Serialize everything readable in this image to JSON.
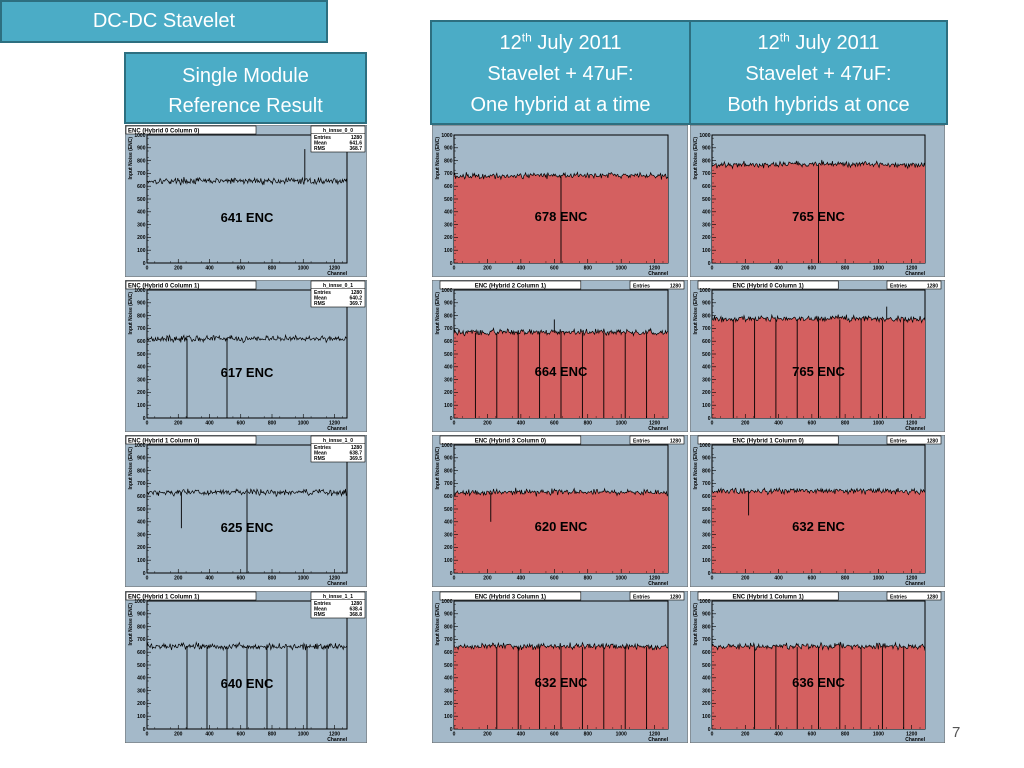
{
  "page": {
    "title": "DC-DC Stavelet",
    "page_number": "7"
  },
  "columns": [
    {
      "line1": "Single Module",
      "line2": "Reference Result"
    },
    {
      "date_day": "12",
      "date_suffix": "th",
      "date_rest": " July 2011",
      "line2": "Stavelet + 47uF:",
      "line3": "One hybrid at a time"
    },
    {
      "date_day": "12",
      "date_suffix": "th",
      "date_rest": " July 2011",
      "line2": "Stavelet + 47uF:",
      "line3": "Both hybrids at once"
    }
  ],
  "chart_data": [
    {
      "type": "line",
      "column": 0,
      "row": 0,
      "title": "ENC (Hybrid 0 Column 0)",
      "stats_name": "h_innse_0_0",
      "entries": "1280",
      "mean": "641.6",
      "rms": "368.7",
      "annotation": "641 ENC",
      "ylabel": "Input Noise (ENC)",
      "xlabel": "Channel",
      "xlim": [
        0,
        1280
      ],
      "ylim": [
        0,
        1000
      ],
      "x_ticks": [
        0,
        200,
        400,
        600,
        800,
        1000,
        1200
      ],
      "y_ticks": [
        0,
        100,
        200,
        300,
        400,
        500,
        600,
        700,
        800,
        900,
        1000
      ],
      "fill": false,
      "noise_level": 641,
      "noise_spread": 12,
      "spikes": [
        {
          "x": 1010,
          "y": 890
        }
      ],
      "dips": []
    },
    {
      "type": "line",
      "column": 0,
      "row": 1,
      "title": "ENC (Hybrid 0 Column 1)",
      "stats_name": "h_innse_0_1",
      "entries": "1280",
      "mean": "640.2",
      "rms": "369.7",
      "annotation": "617 ENC",
      "ylabel": "Input Noise (ENC)",
      "xlabel": "Channel",
      "xlim": [
        0,
        1280
      ],
      "ylim": [
        0,
        1000
      ],
      "x_ticks": [
        0,
        200,
        400,
        600,
        800,
        1000,
        1200
      ],
      "y_ticks": [
        0,
        100,
        200,
        300,
        400,
        500,
        600,
        700,
        800,
        900,
        1000
      ],
      "fill": false,
      "noise_level": 620,
      "noise_spread": 12,
      "spikes": [],
      "dips": [
        {
          "x": 256,
          "y": 0
        },
        {
          "x": 512,
          "y": 0
        }
      ]
    },
    {
      "type": "line",
      "column": 0,
      "row": 2,
      "title": "ENC (Hybrid 1 Column 0)",
      "stats_name": "h_innse_1_0",
      "entries": "1280",
      "mean": "638.7",
      "rms": "369.5",
      "annotation": "625 ENC",
      "ylabel": "Input Noise (ENC)",
      "xlabel": "Channel",
      "xlim": [
        0,
        1280
      ],
      "ylim": [
        0,
        1000
      ],
      "x_ticks": [
        0,
        200,
        400,
        600,
        800,
        1000,
        1200
      ],
      "y_ticks": [
        0,
        100,
        200,
        300,
        400,
        500,
        600,
        700,
        800,
        900,
        1000
      ],
      "fill": false,
      "noise_level": 630,
      "noise_spread": 12,
      "spikes": [],
      "dips": [
        {
          "x": 220,
          "y": 350
        },
        {
          "x": 640,
          "y": 0
        }
      ]
    },
    {
      "type": "line",
      "column": 0,
      "row": 3,
      "title": "ENC (Hybrid 1 Column 1)",
      "stats_name": "h_innse_1_1",
      "entries": "1280",
      "mean": "638.4",
      "rms": "368.8",
      "annotation": "640 ENC",
      "ylabel": "Input Noise (ENC)",
      "xlabel": "Channel",
      "xlim": [
        0,
        1280
      ],
      "ylim": [
        0,
        1000
      ],
      "x_ticks": [
        0,
        200,
        400,
        600,
        800,
        1000,
        1200
      ],
      "y_ticks": [
        0,
        100,
        200,
        300,
        400,
        500,
        600,
        700,
        800,
        900,
        1000
      ],
      "fill": false,
      "noise_level": 645,
      "noise_spread": 12,
      "spikes": [],
      "dips": [
        {
          "x": 256,
          "y": 0
        },
        {
          "x": 384,
          "y": 0
        },
        {
          "x": 512,
          "y": 0
        },
        {
          "x": 640,
          "y": 0
        },
        {
          "x": 768,
          "y": 0
        },
        {
          "x": 896,
          "y": 0
        },
        {
          "x": 1024,
          "y": 0
        },
        {
          "x": 1152,
          "y": 0
        }
      ]
    },
    {
      "type": "area",
      "column": 1,
      "row": 0,
      "title": "",
      "entries_label": "",
      "entries": "",
      "annotation": "678 ENC",
      "ylabel": "Input Noise (ENC)",
      "xlabel": "Channel",
      "xlim": [
        0,
        1280
      ],
      "ylim": [
        0,
        1000
      ],
      "x_ticks": [
        0,
        200,
        400,
        600,
        800,
        1000,
        1200
      ],
      "y_ticks": [
        0,
        100,
        200,
        300,
        400,
        500,
        600,
        700,
        800,
        900,
        1000
      ],
      "fill": true,
      "noise_level": 678,
      "noise_spread": 12,
      "spikes": [],
      "dips": [
        {
          "x": 640,
          "y": 0
        }
      ]
    },
    {
      "type": "area",
      "column": 1,
      "row": 1,
      "title": "ENC (Hybrid 2 Column 1)",
      "entries_label": "Entries",
      "entries": "1280",
      "annotation": "664 ENC",
      "ylabel": "Input Noise (ENC)",
      "xlabel": "Channel",
      "xlim": [
        0,
        1280
      ],
      "ylim": [
        0,
        1000
      ],
      "x_ticks": [
        0,
        200,
        400,
        600,
        800,
        1000,
        1200
      ],
      "y_ticks": [
        0,
        100,
        200,
        300,
        400,
        500,
        600,
        700,
        800,
        900,
        1000
      ],
      "fill": true,
      "noise_level": 665,
      "noise_spread": 12,
      "spikes": [
        {
          "x": 600,
          "y": 770
        }
      ],
      "dips": [
        {
          "x": 128,
          "y": 0
        },
        {
          "x": 256,
          "y": 0
        },
        {
          "x": 384,
          "y": 0
        },
        {
          "x": 512,
          "y": 0
        },
        {
          "x": 640,
          "y": 0
        },
        {
          "x": 768,
          "y": 0
        },
        {
          "x": 896,
          "y": 0
        },
        {
          "x": 1024,
          "y": 0
        },
        {
          "x": 1152,
          "y": 0
        }
      ]
    },
    {
      "type": "area",
      "column": 1,
      "row": 2,
      "title": "ENC (Hybrid 3 Column 0)",
      "entries_label": "Entries",
      "entries": "1280",
      "annotation": "620 ENC",
      "ylabel": "Input Noise (ENC)",
      "xlabel": "Channel",
      "xlim": [
        0,
        1280
      ],
      "ylim": [
        0,
        1000
      ],
      "x_ticks": [
        0,
        200,
        400,
        600,
        800,
        1000,
        1200
      ],
      "y_ticks": [
        0,
        100,
        200,
        300,
        400,
        500,
        600,
        700,
        800,
        900,
        1000
      ],
      "fill": true,
      "noise_level": 625,
      "noise_spread": 12,
      "spikes": [],
      "dips": [
        {
          "x": 220,
          "y": 400
        }
      ]
    },
    {
      "type": "area",
      "column": 1,
      "row": 3,
      "title": "ENC (Hybrid 3 Column 1)",
      "entries_label": "Entries",
      "entries": "1280",
      "annotation": "632 ENC",
      "ylabel": "Input Noise (ENC)",
      "xlabel": "Channel",
      "xlim": [
        0,
        1280
      ],
      "ylim": [
        0,
        1000
      ],
      "x_ticks": [
        0,
        200,
        400,
        600,
        800,
        1000,
        1200
      ],
      "y_ticks": [
        0,
        100,
        200,
        300,
        400,
        500,
        600,
        700,
        800,
        900,
        1000
      ],
      "fill": true,
      "noise_level": 640,
      "noise_spread": 12,
      "spikes": [],
      "dips": [
        {
          "x": 256,
          "y": 0
        },
        {
          "x": 384,
          "y": 0
        },
        {
          "x": 512,
          "y": 0
        },
        {
          "x": 640,
          "y": 0
        },
        {
          "x": 768,
          "y": 0
        },
        {
          "x": 896,
          "y": 0
        },
        {
          "x": 1024,
          "y": 0
        },
        {
          "x": 1152,
          "y": 0
        }
      ]
    },
    {
      "type": "area",
      "column": 2,
      "row": 0,
      "title": "",
      "entries_label": "",
      "entries": "",
      "annotation": "765 ENC",
      "ylabel": "Input Noise (ENC)",
      "xlabel": "Channel",
      "xlim": [
        0,
        1280
      ],
      "ylim": [
        0,
        1000
      ],
      "x_ticks": [
        0,
        200,
        400,
        600,
        800,
        1000,
        1200
      ],
      "y_ticks": [
        0,
        100,
        200,
        300,
        400,
        500,
        600,
        700,
        800,
        900,
        1000
      ],
      "fill": true,
      "noise_level": 765,
      "noise_spread": 12,
      "spikes": [],
      "dips": [
        {
          "x": 640,
          "y": 0
        }
      ]
    },
    {
      "type": "area",
      "column": 2,
      "row": 1,
      "title": "ENC (Hybrid 0 Column 1)",
      "entries_label": "Entries",
      "entries": "1280",
      "annotation": "765 ENC",
      "ylabel": "Input Noise (ENC)",
      "xlabel": "Channel",
      "xlim": [
        0,
        1280
      ],
      "ylim": [
        0,
        1000
      ],
      "x_ticks": [
        0,
        200,
        400,
        600,
        800,
        1000,
        1200
      ],
      "y_ticks": [
        0,
        100,
        200,
        300,
        400,
        500,
        600,
        700,
        800,
        900,
        1000
      ],
      "fill": true,
      "noise_level": 770,
      "noise_spread": 12,
      "spikes": [
        {
          "x": 1050,
          "y": 870
        }
      ],
      "dips": [
        {
          "x": 128,
          "y": 0
        },
        {
          "x": 256,
          "y": 0
        },
        {
          "x": 384,
          "y": 0
        },
        {
          "x": 512,
          "y": 0
        },
        {
          "x": 640,
          "y": 0
        },
        {
          "x": 768,
          "y": 0
        },
        {
          "x": 896,
          "y": 0
        },
        {
          "x": 1024,
          "y": 0
        },
        {
          "x": 1152,
          "y": 0
        }
      ]
    },
    {
      "type": "area",
      "column": 2,
      "row": 2,
      "title": "ENC (Hybrid 1 Column 0)",
      "entries_label": "Entries",
      "entries": "1280",
      "annotation": "632 ENC",
      "ylabel": "Input Noise (ENC)",
      "xlabel": "Channel",
      "xlim": [
        0,
        1280
      ],
      "ylim": [
        0,
        1000
      ],
      "x_ticks": [
        0,
        200,
        400,
        600,
        800,
        1000,
        1200
      ],
      "y_ticks": [
        0,
        100,
        200,
        300,
        400,
        500,
        600,
        700,
        800,
        900,
        1000
      ],
      "fill": true,
      "noise_level": 635,
      "noise_spread": 12,
      "spikes": [],
      "dips": [
        {
          "x": 220,
          "y": 450
        }
      ]
    },
    {
      "type": "area",
      "column": 2,
      "row": 3,
      "title": "ENC (Hybrid 1 Column 1)",
      "entries_label": "Entries",
      "entries": "1280",
      "annotation": "636 ENC",
      "ylabel": "Input Noise (ENC)",
      "xlabel": "Channel",
      "xlim": [
        0,
        1280
      ],
      "ylim": [
        0,
        1000
      ],
      "x_ticks": [
        0,
        200,
        400,
        600,
        800,
        1000,
        1200
      ],
      "y_ticks": [
        0,
        100,
        200,
        300,
        400,
        500,
        600,
        700,
        800,
        900,
        1000
      ],
      "fill": true,
      "noise_level": 640,
      "noise_spread": 12,
      "spikes": [],
      "dips": [
        {
          "x": 256,
          "y": 0
        },
        {
          "x": 384,
          "y": 0
        },
        {
          "x": 512,
          "y": 0
        },
        {
          "x": 640,
          "y": 0
        },
        {
          "x": 768,
          "y": 0
        },
        {
          "x": 896,
          "y": 0
        },
        {
          "x": 1024,
          "y": 0
        },
        {
          "x": 1152,
          "y": 0
        }
      ]
    }
  ]
}
